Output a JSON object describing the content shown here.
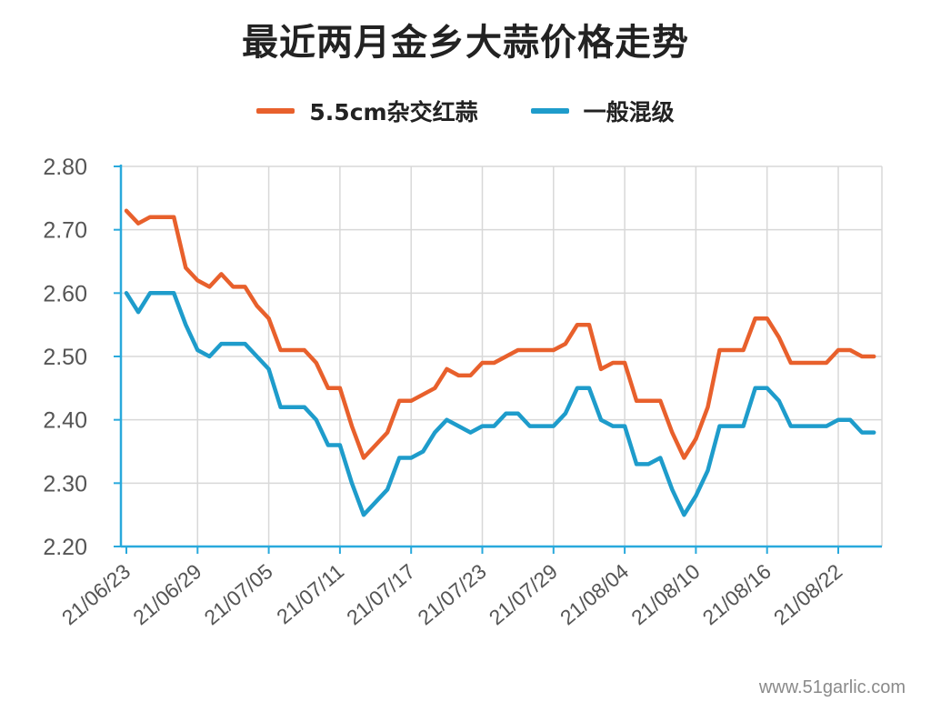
{
  "colors": {
    "series_1": "#E8602C",
    "series_2": "#1E9CCB",
    "axis": "#29A9DC",
    "grid": "#D8D8D8"
  },
  "watermark": "www.51garlic.com",
  "chart_data": {
    "type": "line",
    "title": "最近两月金乡大蒜价格走势",
    "xlabel": "",
    "ylabel": "",
    "ylim": [
      2.2,
      2.8
    ],
    "yticks": [
      "2.80",
      "2.70",
      "2.60",
      "2.50",
      "2.40",
      "2.30",
      "2.20"
    ],
    "x_tick_labels": [
      "21/06/23",
      "21/06/29",
      "21/07/05",
      "21/07/11",
      "21/07/17",
      "21/07/23",
      "21/07/29",
      "21/08/04",
      "21/08/10",
      "21/08/16",
      "21/08/22"
    ],
    "x_tick_step_days": 6,
    "legend_position": "top-center",
    "grid": true,
    "series": [
      {
        "name": "5.5cm杂交红蒜",
        "values": [
          2.73,
          2.71,
          2.72,
          2.72,
          2.72,
          2.64,
          2.62,
          2.61,
          2.63,
          2.61,
          2.61,
          2.58,
          2.56,
          2.51,
          2.51,
          2.51,
          2.49,
          2.45,
          2.45,
          2.39,
          2.34,
          2.36,
          2.38,
          2.43,
          2.43,
          2.44,
          2.45,
          2.48,
          2.47,
          2.47,
          2.49,
          2.49,
          2.5,
          2.51,
          2.51,
          2.51,
          2.51,
          2.52,
          2.55,
          2.55,
          2.48,
          2.49,
          2.49,
          2.43,
          2.43,
          2.43,
          2.38,
          2.34,
          2.37,
          2.42,
          2.51,
          2.51,
          2.51,
          2.56,
          2.56,
          2.53,
          2.49,
          2.49,
          2.49,
          2.49,
          2.51,
          2.51,
          2.5,
          2.5
        ]
      },
      {
        "name": "一般混级",
        "values": [
          2.6,
          2.57,
          2.6,
          2.6,
          2.6,
          2.55,
          2.51,
          2.5,
          2.52,
          2.52,
          2.52,
          2.5,
          2.48,
          2.42,
          2.42,
          2.42,
          2.4,
          2.36,
          2.36,
          2.3,
          2.25,
          2.27,
          2.29,
          2.34,
          2.34,
          2.35,
          2.38,
          2.4,
          2.39,
          2.38,
          2.39,
          2.39,
          2.41,
          2.41,
          2.39,
          2.39,
          2.39,
          2.41,
          2.45,
          2.45,
          2.4,
          2.39,
          2.39,
          2.33,
          2.33,
          2.34,
          2.29,
          2.25,
          2.28,
          2.32,
          2.39,
          2.39,
          2.39,
          2.45,
          2.45,
          2.43,
          2.39,
          2.39,
          2.39,
          2.39,
          2.4,
          2.4,
          2.38,
          2.38
        ]
      }
    ]
  }
}
